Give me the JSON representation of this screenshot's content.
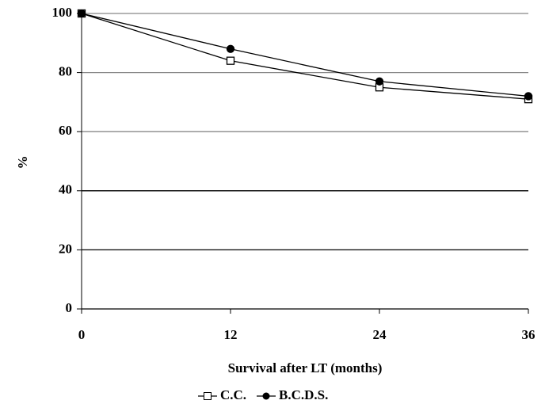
{
  "chart_data": {
    "type": "line",
    "x_label": "Survival after LT (months)",
    "y_label": "%",
    "x": [
      0,
      12,
      24,
      36
    ],
    "series": [
      {
        "name": "C.C.",
        "color": "#000000",
        "marker": "square-open",
        "values": [
          100,
          84,
          75,
          71
        ]
      },
      {
        "name": "B.C.D.S.",
        "color": "#000000",
        "marker": "circle-filled",
        "values": [
          100,
          88,
          77,
          72
        ]
      }
    ],
    "xlim": [
      0,
      36
    ],
    "xticks": [
      0,
      12,
      24,
      36
    ],
    "ylim": [
      0,
      100
    ],
    "yticks": [
      0,
      20,
      40,
      60,
      80,
      100
    ],
    "grid": true,
    "legend": "bottom"
  }
}
